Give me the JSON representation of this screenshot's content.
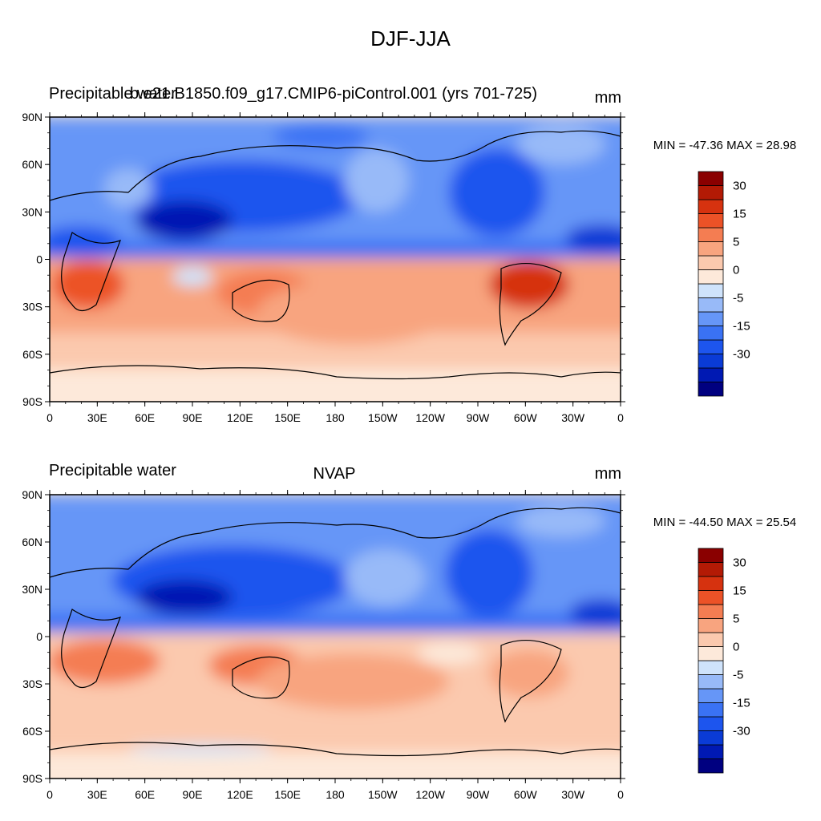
{
  "figure": {
    "title": "DJF-JJA"
  },
  "colorbar": {
    "levels": [
      -40,
      -30,
      -20,
      -15,
      -10,
      -5,
      -2,
      0,
      2,
      5,
      10,
      15,
      20,
      30,
      40
    ],
    "tick_labels": [
      "30",
      "15",
      "5",
      "0",
      "-5",
      "-15",
      "-30"
    ],
    "colors": [
      "#000080",
      "#0019b3",
      "#0a3bd6",
      "#1d55ee",
      "#3a72f4",
      "#6696f7",
      "#98baf8",
      "#cfe3fb",
      "#fde9da",
      "#fbc9ae",
      "#f8a47f",
      "#f47d52",
      "#ec5227",
      "#d6320f",
      "#b31a05",
      "#8a0000"
    ]
  },
  "panels": [
    {
      "left_title": "Precipitable water",
      "center_title": "b.e21.B1850.f09_g17.CMIP6-piControl.001 (yrs 701-725)",
      "units": "mm",
      "stats": "MIN = -47.36 MAX =  28.98",
      "lat_labels": [
        "90N",
        "60N",
        "30N",
        "0",
        "30S",
        "60S",
        "90S"
      ],
      "lon_labels": [
        "0",
        "30E",
        "60E",
        "90E",
        "120E",
        "150E",
        "180",
        "150W",
        "120W",
        "90W",
        "60W",
        "30W",
        "0"
      ]
    },
    {
      "left_title": "Precipitable water",
      "center_title": "NVAP",
      "units": "mm",
      "stats": "MIN = -44.50 MAX =  25.54",
      "lat_labels": [
        "90N",
        "60N",
        "30N",
        "0",
        "30S",
        "60S",
        "90S"
      ],
      "lon_labels": [
        "0",
        "30E",
        "60E",
        "90E",
        "120E",
        "150E",
        "180",
        "150W",
        "120W",
        "90W",
        "60W",
        "30W",
        "0"
      ]
    }
  ]
}
